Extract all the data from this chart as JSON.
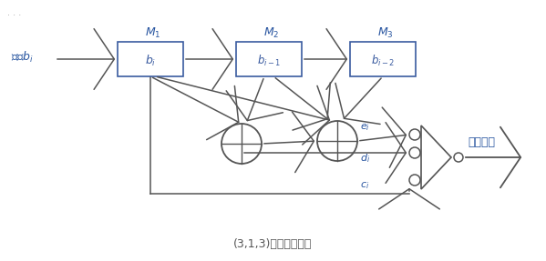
{
  "title": "(3,1,3)卷积码编码器",
  "input_label": "输入$b_i$",
  "output_label": "编码输出",
  "box1_label": "$b_i$",
  "box2_label": "$b_{i-1}$",
  "box3_label": "$b_{i-2}$",
  "m1_label": "$M_1$",
  "m2_label": "$M_2$",
  "m3_label": "$M_3$",
  "ei_label": "$e_i$",
  "di_label": "$d_i$",
  "ci_label": "$c_i$",
  "box_color": "#3a5ba0",
  "arrow_color": "#555555",
  "text_color": "#2855a0",
  "bg_color": "#ffffff",
  "fig_width": 5.99,
  "fig_height": 2.87
}
